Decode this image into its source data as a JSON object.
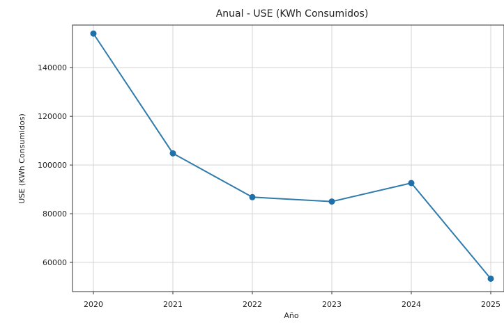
{
  "chart_data": {
    "type": "line",
    "title": "Anual - USE (KWh Consumidos)",
    "xlabel": "Año",
    "ylabel": "USE (KWh Consumidos)",
    "x": [
      "2020",
      "2021",
      "2022",
      "2023",
      "2024",
      "2025"
    ],
    "series": [
      {
        "values": [
          154000,
          104800,
          86800,
          85000,
          92600,
          53300
        ]
      }
    ],
    "yticks": [
      60000,
      80000,
      100000,
      120000,
      140000
    ],
    "ytick_labels": [
      "60000",
      "80000",
      "100000",
      "120000",
      "140000"
    ],
    "ylim": [
      48000,
      157500
    ],
    "grid": true,
    "line_color": "#2f7bab",
    "marker_color": "#1f6fa8",
    "marker": "circle"
  }
}
